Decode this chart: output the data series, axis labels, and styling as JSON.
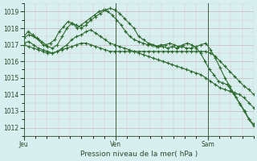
{
  "background_color": "#d8eff0",
  "grid_color": "#b0d8d8",
  "line_color": "#2d6a2d",
  "ylim": [
    1011.5,
    1019.5
  ],
  "yticks": [
    1012,
    1013,
    1014,
    1015,
    1016,
    1017,
    1018,
    1019
  ],
  "xlabel": "Pression niveau de la mer( hPa )",
  "day_labels": [
    "Jeu",
    "Ven",
    "Sam"
  ],
  "day_positions": [
    0,
    24,
    48
  ],
  "total_hours": 60,
  "series": [
    [
      1017.5,
      1017.8,
      1017.6,
      1017.4,
      1017.2,
      1017.0,
      1017.1,
      1017.3,
      1017.8,
      1018.1,
      1018.4,
      1018.3,
      1018.0,
      1018.2,
      1018.4,
      1018.6,
      1018.8,
      1019.0,
      1019.1,
      1019.0,
      1018.8,
      1018.5,
      1018.2,
      1017.8,
      1017.5,
      1017.3,
      1017.2,
      1017.1,
      1017.0,
      1017.0,
      1016.9,
      1017.0,
      1017.0,
      1017.1,
      1017.0,
      1016.9,
      1017.0,
      1017.1,
      1017.0,
      1016.8,
      1016.5,
      1016.0,
      1015.5,
      1015.2,
      1014.8,
      1014.7,
      1014.6,
      1014.2,
      1013.8,
      1013.4,
      1013.0,
      1012.5,
      1012.2
    ],
    [
      1017.4,
      1017.6,
      1017.5,
      1017.3,
      1017.0,
      1016.9,
      1016.8,
      1017.0,
      1017.5,
      1018.0,
      1018.3,
      1018.2,
      1018.0,
      1018.2,
      1018.5,
      1018.7,
      1018.9,
      1019.1,
      1019.2,
      1019.1,
      1018.9,
      1018.6,
      1018.3,
      1018.0,
      1017.5,
      1017.3,
      1017.1,
      1017.0,
      1016.9,
      1016.9,
      1016.8,
      1016.9,
      1016.8,
      1016.9,
      1016.8,
      1016.8,
      1016.9,
      1017.0,
      1017.1,
      1016.7,
      1016.2,
      1015.6,
      1015.0,
      1014.5,
      1014.0,
      1013.5,
      1013.0,
      1012.5,
      1012.1
    ],
    [
      1017.1,
      1017.2,
      1017.0,
      1016.8,
      1016.7,
      1016.6,
      1016.5,
      1016.6,
      1016.8,
      1017.0,
      1017.3,
      1017.5,
      1017.6,
      1017.8,
      1017.9,
      1017.7,
      1017.5,
      1017.3,
      1017.1,
      1017.0,
      1016.9,
      1016.8,
      1016.7,
      1016.6,
      1016.5,
      1016.4,
      1016.3,
      1016.2,
      1016.1,
      1016.0,
      1015.9,
      1015.8,
      1015.7,
      1015.6,
      1015.5,
      1015.4,
      1015.3,
      1015.2,
      1015.0,
      1014.8,
      1014.6,
      1014.4,
      1014.3,
      1014.2,
      1014.1,
      1014.0,
      1013.8,
      1013.5,
      1013.2
    ],
    [
      1017.0,
      1016.9,
      1016.8,
      1016.7,
      1016.6,
      1016.5,
      1016.5,
      1016.6,
      1016.7,
      1016.8,
      1016.9,
      1017.0,
      1017.1,
      1017.1,
      1017.0,
      1016.9,
      1016.8,
      1016.7,
      1016.6,
      1016.6,
      1016.6,
      1016.6,
      1016.6,
      1016.6,
      1016.6,
      1016.6,
      1016.6,
      1016.6,
      1016.6,
      1016.6,
      1016.6,
      1016.6,
      1016.6,
      1016.6,
      1016.6,
      1016.6,
      1016.6,
      1016.6,
      1016.6,
      1016.5,
      1016.3,
      1016.0,
      1015.7,
      1015.4,
      1015.1,
      1014.8,
      1014.5,
      1014.3,
      1014.0
    ]
  ]
}
